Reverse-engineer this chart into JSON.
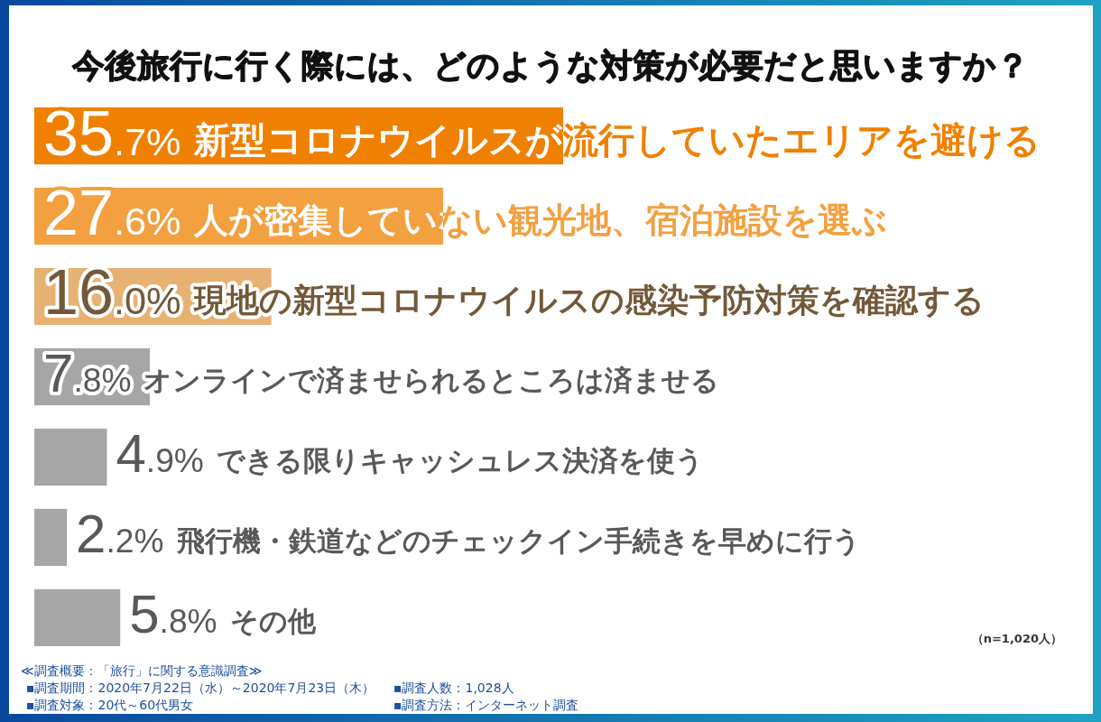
{
  "chart_data": {
    "type": "bar",
    "orientation": "horizontal",
    "title": "今後旅行に行く際には、どのような対策が必要だと思いますか？",
    "categories": [
      "新型コロナウイルスが流行していたエリアを避ける",
      "人が密集していない観光地、宿泊施設を選ぶ",
      "現地の新型コロナウイルスの感染予防対策を確認する",
      "オンラインで済ませられるところは済ませる",
      "できる限りキャッシュレス決済を使う",
      "飛行機・鉄道などのチェックイン手続きを早めに行う",
      "その他"
    ],
    "values": [
      35.7,
      27.6,
      16.0,
      7.8,
      4.9,
      2.2,
      5.8
    ],
    "colors": [
      "#f08000",
      "#f2a040",
      "#e6b172",
      "#a6a6a6",
      "#a6a6a6",
      "#a6a6a6",
      "#a6a6a6"
    ],
    "value_labels": [
      "35.7%",
      "27.6%",
      "16.0%",
      "7.8%",
      "4.9%",
      "2.2%",
      "5.8%"
    ],
    "tick_labels": "y",
    "annotations": [
      "（n=1,020人）",
      "≪調査概要：「旅行」に関する意識調査≫",
      "▪調査期間：2020年7月22日（水）～2020年7月23日（木）",
      "▪調査人数：1,028人",
      "▪調査対象：20代～60代男女",
      "▪調査方法：インターネット調査"
    ]
  }
}
